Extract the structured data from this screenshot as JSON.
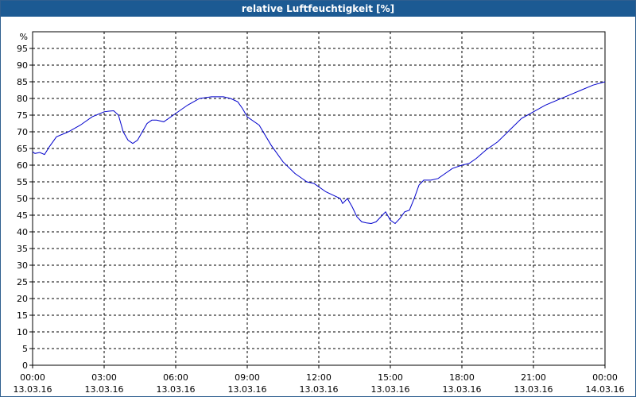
{
  "window": {
    "title": "relative Luftfeuchtigkeit [%]"
  },
  "chart_data": {
    "type": "line",
    "title": "relative Luftfeuchtigkeit [%]",
    "ylabel": "%",
    "ylim": [
      0,
      100
    ],
    "y_ticks": [
      0,
      5,
      10,
      15,
      20,
      25,
      30,
      35,
      40,
      45,
      50,
      55,
      60,
      65,
      70,
      75,
      80,
      85,
      90,
      95
    ],
    "x_unit": "hours since 13.03.16 00:00",
    "xlim": [
      0,
      24
    ],
    "x_ticks": [
      {
        "x": 0,
        "time": "00:00",
        "date": "13.03.16"
      },
      {
        "x": 3,
        "time": "03:00",
        "date": "13.03.16"
      },
      {
        "x": 6,
        "time": "06:00",
        "date": "13.03.16"
      },
      {
        "x": 9,
        "time": "09:00",
        "date": "13.03.16"
      },
      {
        "x": 12,
        "time": "12:00",
        "date": "13.03.16"
      },
      {
        "x": 15,
        "time": "15:00",
        "date": "13.03.16"
      },
      {
        "x": 18,
        "time": "18:00",
        "date": "13.03.16"
      },
      {
        "x": 21,
        "time": "21:00",
        "date": "13.03.16"
      },
      {
        "x": 24,
        "time": "00:00",
        "date": "14.03.16"
      }
    ],
    "grid": true,
    "series": [
      {
        "color": "#0000cc",
        "x": [
          0,
          0.1,
          0.3,
          0.5,
          0.7,
          1.0,
          1.5,
          2.0,
          2.5,
          3.0,
          3.2,
          3.4,
          3.6,
          3.8,
          4.0,
          4.2,
          4.4,
          4.6,
          4.8,
          5.0,
          5.2,
          5.5,
          6.0,
          6.5,
          7.0,
          7.5,
          8.0,
          8.3,
          8.6,
          8.8,
          9.0,
          9.5,
          10.0,
          10.5,
          11.0,
          11.5,
          11.8,
          12.0,
          12.3,
          12.6,
          12.9,
          13.0,
          13.2,
          13.4,
          13.6,
          13.8,
          14.0,
          14.2,
          14.4,
          14.6,
          14.8,
          15.0,
          15.2,
          15.4,
          15.6,
          15.8,
          16.0,
          16.2,
          16.4,
          16.7,
          17.0,
          17.3,
          17.6,
          18.0,
          18.3,
          18.6,
          19.0,
          19.5,
          20.0,
          20.5,
          21.0,
          21.5,
          22.0,
          22.5,
          23.0,
          23.5,
          24.0
        ],
        "y": [
          64,
          63.5,
          63.8,
          63.2,
          65.5,
          68.5,
          70,
          72,
          74.5,
          76,
          76.2,
          76.3,
          75,
          70,
          67.5,
          66.5,
          67.5,
          70,
          72.5,
          73.5,
          73.5,
          73,
          75.5,
          78,
          80,
          80.5,
          80.5,
          80,
          79,
          77,
          74.5,
          72,
          66,
          61,
          57.5,
          55,
          54.5,
          53.5,
          52,
          51,
          50,
          48.5,
          50,
          47.5,
          44.5,
          43,
          42.7,
          42.5,
          43,
          44.5,
          46,
          43.5,
          42.5,
          44,
          46,
          46.5,
          50,
          54,
          55.5,
          55.5,
          56,
          57.5,
          59,
          60,
          60.5,
          62,
          64.5,
          67,
          70.5,
          74,
          76,
          78,
          79.5,
          81,
          82.5,
          84,
          85
        ]
      }
    ]
  }
}
